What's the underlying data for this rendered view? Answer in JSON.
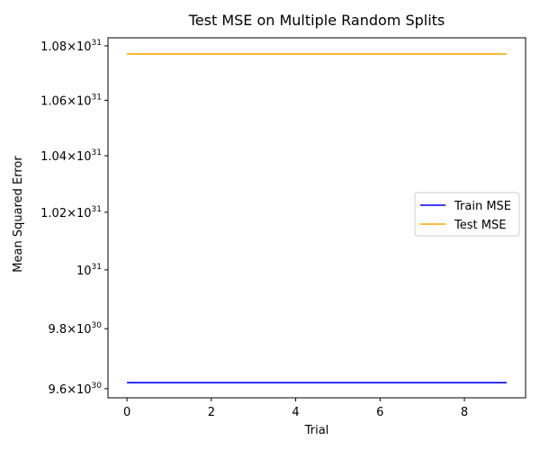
{
  "chart_data": {
    "type": "line",
    "title": "Test MSE on Multiple Random Splits",
    "xlabel": "Trial",
    "ylabel": "Mean Squared Error",
    "x": [
      0,
      1,
      2,
      3,
      4,
      5,
      6,
      7,
      8,
      9
    ],
    "xlim": [
      -0.45,
      9.45
    ],
    "xticks": [
      0,
      2,
      4,
      6,
      8
    ],
    "yscale": "log",
    "ylim": [
      9.57e+30,
      1.083e+31
    ],
    "yticks": [
      {
        "value": 9.6e+30,
        "mantissa": "9.6",
        "exponent": "30"
      },
      {
        "value": 9.8e+30,
        "mantissa": "9.8",
        "exponent": "30"
      },
      {
        "value": 1e+31,
        "mantissa": "",
        "exponent": "31"
      },
      {
        "value": 1.02e+31,
        "mantissa": "1.02",
        "exponent": "31"
      },
      {
        "value": 1.04e+31,
        "mantissa": "1.04",
        "exponent": "31"
      },
      {
        "value": 1.06e+31,
        "mantissa": "1.06",
        "exponent": "31"
      },
      {
        "value": 1.08e+31,
        "mantissa": "1.08",
        "exponent": "31"
      }
    ],
    "series": [
      {
        "name": "Train MSE",
        "color": "#0000ff",
        "values": [
          9.62e+30,
          9.62e+30,
          9.62e+30,
          9.62e+30,
          9.62e+30,
          9.62e+30,
          9.62e+30,
          9.62e+30,
          9.62e+30,
          9.62e+30
        ]
      },
      {
        "name": "Test MSE",
        "color": "#ffa500",
        "values": [
          1.077e+31,
          1.077e+31,
          1.077e+31,
          1.077e+31,
          1.077e+31,
          1.077e+31,
          1.077e+31,
          1.077e+31,
          1.077e+31,
          1.077e+31
        ]
      }
    ],
    "legend_position": "center-right",
    "grid": false
  }
}
